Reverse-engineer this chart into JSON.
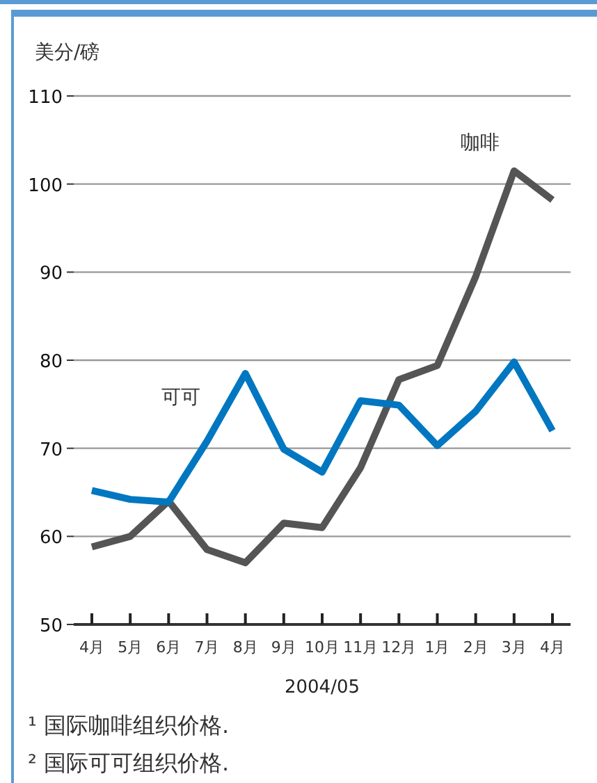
{
  "chart_data": {
    "type": "line",
    "ylabel": "美分/磅",
    "xlabel": "2004/05",
    "categories": [
      "4月",
      "5月",
      "6月",
      "7月",
      "8月",
      "9月",
      "10月",
      "11月",
      "12月",
      "1月",
      "2月",
      "3月",
      "4月"
    ],
    "series": [
      {
        "name": "咖啡",
        "color": "#555555",
        "values": [
          58.8,
          60,
          64,
          58.5,
          57,
          61.5,
          61,
          67.8,
          77.8,
          79.4,
          89.5,
          101.5,
          98.2
        ]
      },
      {
        "name": "可可",
        "color": "#0077c0",
        "values": [
          65.2,
          64.2,
          63.9,
          70.8,
          78.5,
          69.9,
          67.3,
          75.4,
          74.9,
          70.3,
          74.2,
          79.8,
          72
        ]
      }
    ],
    "ylim": [
      50,
      110
    ],
    "yticks": [
      50,
      60,
      70,
      80,
      90,
      100,
      110
    ],
    "grid": "y",
    "marker": "none",
    "line_style": "solid",
    "annotations": [
      "¹ 国际咖啡组织价格.",
      "² 国际可可组织价格."
    ]
  }
}
